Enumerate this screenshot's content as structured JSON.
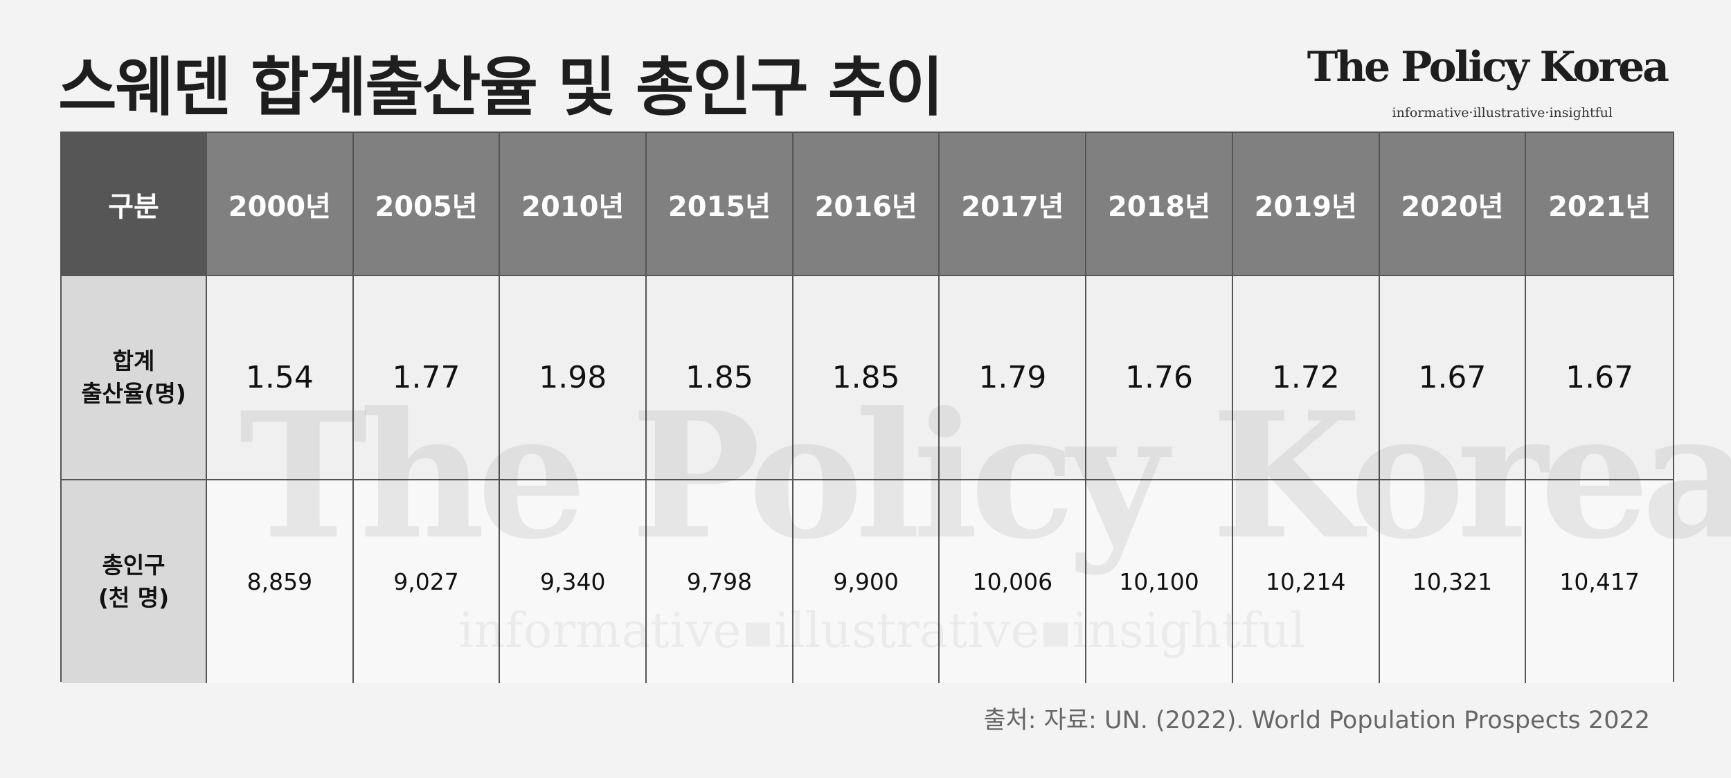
{
  "header": {
    "title": "스웨덴 합계출산율 및 총인구 추이",
    "logo": "The Policy Korea",
    "tagline": "informative·illustrative·insightful"
  },
  "table": {
    "columns": [
      "구분",
      "2000년",
      "2005년",
      "2010년",
      "2015년",
      "2016년",
      "2017년",
      "2018년",
      "2019년",
      "2020년",
      "2021년"
    ],
    "row_labels": [
      [
        "합계",
        "출산율(명)"
      ],
      [
        "총인구",
        "(천 명)"
      ]
    ],
    "rows": [
      [
        "1.54",
        "1.77",
        "1.98",
        "1.85",
        "1.85",
        "1.79",
        "1.76",
        "1.72",
        "1.67",
        "1.67"
      ],
      [
        "8,859",
        "9,027",
        "9,340",
        "9,798",
        "9,900",
        "10,006",
        "10,100",
        "10,214",
        "10,321",
        "10,417"
      ]
    ]
  },
  "watermark": {
    "logo": "The Policy Korea",
    "tagline": "informative▪illustrative▪insightful"
  },
  "source": "출처: 자료: UN. (2022). World Population Prospects 2022"
}
